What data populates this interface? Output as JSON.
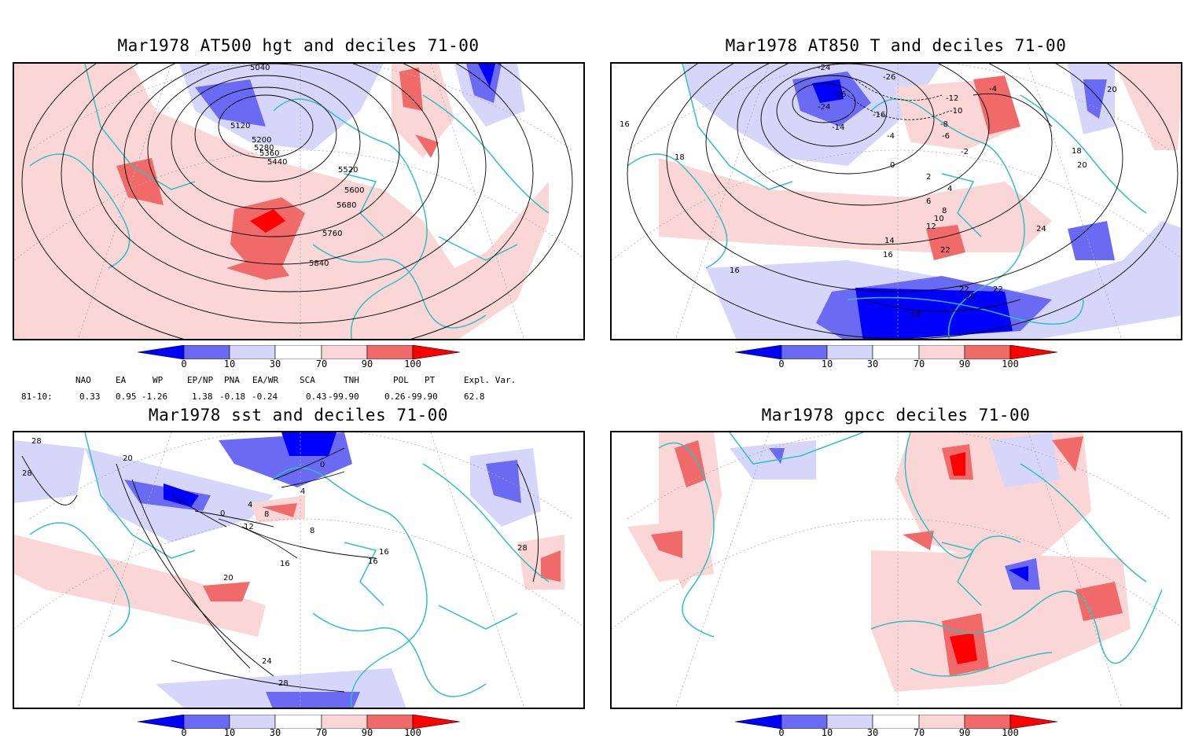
{
  "panels": [
    {
      "title": "Mar1978 AT500 hgt and deciles 71-00",
      "contour_labels": [
        "5040",
        "5120",
        "5200",
        "5280",
        "5360",
        "5440",
        "5520",
        "5600",
        "5680",
        "5760",
        "5840"
      ]
    },
    {
      "title": "Mar1978 AT850 T and deciles 71-00",
      "contour_labels": [
        "-24",
        "-26",
        "-26",
        "-24",
        "-14",
        "-16",
        "-12",
        "-10",
        "-8",
        "-6",
        "-4",
        "-4",
        "-2",
        "0",
        "2",
        "4",
        "6",
        "8",
        "10",
        "12",
        "14",
        "16",
        "16",
        "16",
        "18",
        "18",
        "18",
        "20",
        "20",
        "20",
        "22",
        "22",
        "22",
        "24"
      ]
    },
    {
      "title": "Mar1978 sst and deciles 71-00",
      "contour_labels": [
        "28",
        "28",
        "20",
        "0",
        "4",
        "8",
        "12",
        "16",
        "16",
        "16",
        "20",
        "24",
        "28",
        "28",
        "0",
        "4",
        "8"
      ]
    },
    {
      "title": "Mar1978 gpcc deciles 71-00",
      "contour_labels": []
    }
  ],
  "colorbar": {
    "ticks": [
      "0",
      "10",
      "30",
      "70",
      "90",
      "100"
    ],
    "colors": [
      "#0000ff",
      "#6a6af2",
      "#d6d6fb",
      "#ffffff",
      "#fbd6d6",
      "#f06a6a",
      "#ff0000"
    ]
  },
  "indices": {
    "headers": [
      "NAO",
      "EA",
      "WP",
      "EP/NP",
      "PNA",
      "EA/WR",
      "SCA",
      "TNH",
      "POL",
      "PT",
      "Expl. Var."
    ],
    "row_label": "81-10:",
    "values": [
      "0.33",
      "0.95",
      "-1.26",
      "1.38",
      "-0.18",
      "-0.24",
      "0.43",
      "-99.90",
      "0.26",
      "-99.90",
      "62.8"
    ]
  },
  "colors": {
    "coast": "#30c0c0",
    "grid": "#aaaaaa",
    "frame": "#000000"
  }
}
